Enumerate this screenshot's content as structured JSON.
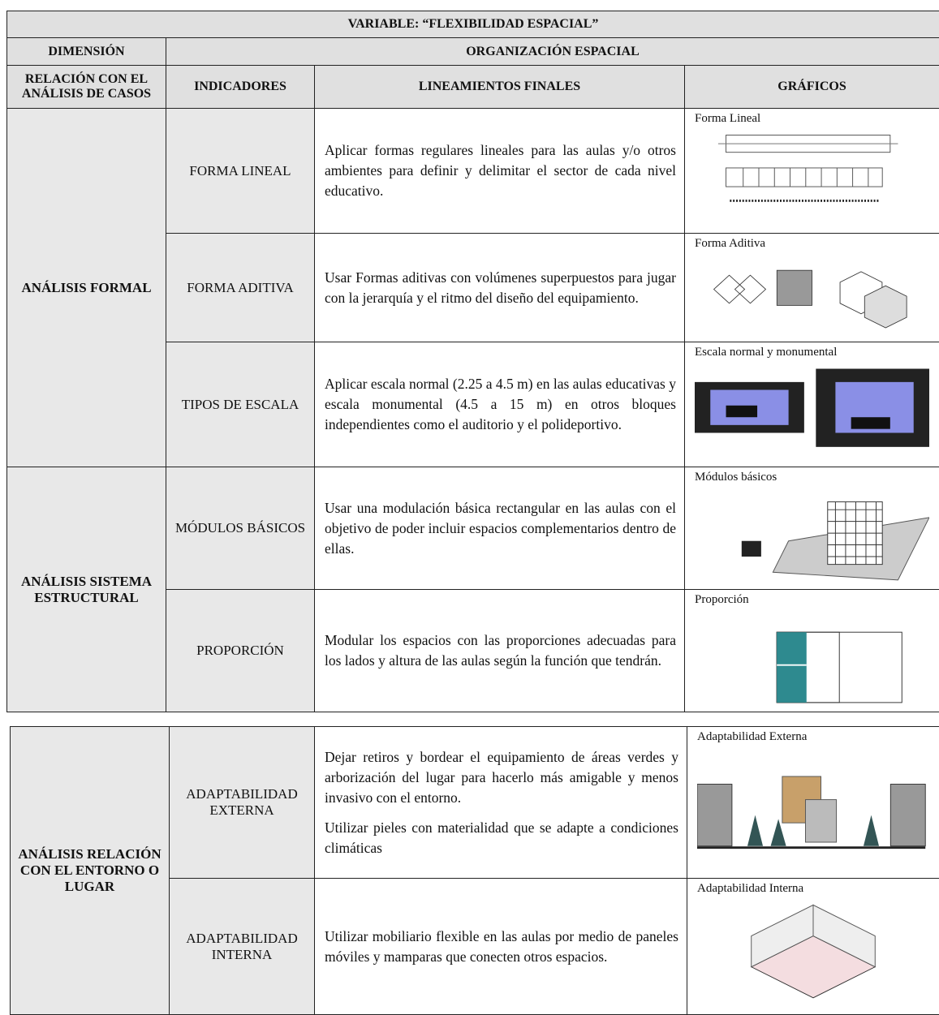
{
  "title": "VARIABLE:  “FLEXIBILIDAD ESPACIAL”",
  "dimension_label": "DIMENSIÓN",
  "dimension": "ORGANIZACIÓN ESPACIAL",
  "headers": [
    "RELACIÓN CON EL ANÁLISIS DE CASOS",
    "INDICADORES",
    "LINEAMIENTOS FINALES",
    "GRÁFICOS"
  ],
  "groups": [
    {
      "name": "ANÁLISIS FORMAL",
      "rows": [
        {
          "indicator": "FORMA LINEAL",
          "guideline": [
            "Aplicar formas regulares lineales para las aulas y/o otros ambientes para definir y delimitar el sector de cada nivel educativo."
          ],
          "graphic": "Forma Lineal"
        },
        {
          "indicator": "FORMA ADITIVA",
          "guideline": [
            "Usar Formas aditivas con volúmenes superpuestos para jugar con la jerarquía y el ritmo del diseño del equipamiento."
          ],
          "graphic": "Forma Aditiva"
        },
        {
          "indicator": "TIPOS DE ESCALA",
          "guideline": [
            "Aplicar escala normal (2.25 a 4.5 m) en las aulas educativas y escala monumental (4.5 a 15 m) en otros bloques independientes como el auditorio y el polideportivo."
          ],
          "graphic": "Escala normal y monumental"
        }
      ]
    },
    {
      "name": "ANÁLISIS SISTEMA ESTRUCTURAL",
      "rows": [
        {
          "indicator": "MÓDULOS BÁSICOS",
          "guideline": [
            "Usar  una modulación básica rectangular en las aulas con el objetivo de poder incluir espacios complementarios dentro de ellas."
          ],
          "graphic": "Módulos básicos"
        },
        {
          "indicator": "PROPORCIÓN",
          "guideline": [
            "Modular los espacios con las proporciones adecuadas para los lados y altura de  las aulas según la función que tendrán."
          ],
          "graphic": "Proporción"
        }
      ]
    },
    {
      "name": "ANÁLISIS RELACIÓN CON EL ENTORNO O LUGAR",
      "rows": [
        {
          "indicator": "ADAPTABILIDAD EXTERNA",
          "guideline": [
            "Dejar retiros y bordear el equipamiento de áreas verdes y arborización del lugar para hacerlo más amigable y menos invasivo con el entorno.",
            "Utilizar pieles con materialidad que se adapte a condiciones climáticas"
          ],
          "graphic": "Adaptabilidad Externa"
        },
        {
          "indicator": "ADAPTABILIDAD INTERNA",
          "guideline": [
            "Utilizar mobiliario flexible en las aulas por medio de paneles móviles y mamparas que conecten otros espacios."
          ],
          "graphic": "Adaptabilidad Interna"
        }
      ]
    }
  ]
}
